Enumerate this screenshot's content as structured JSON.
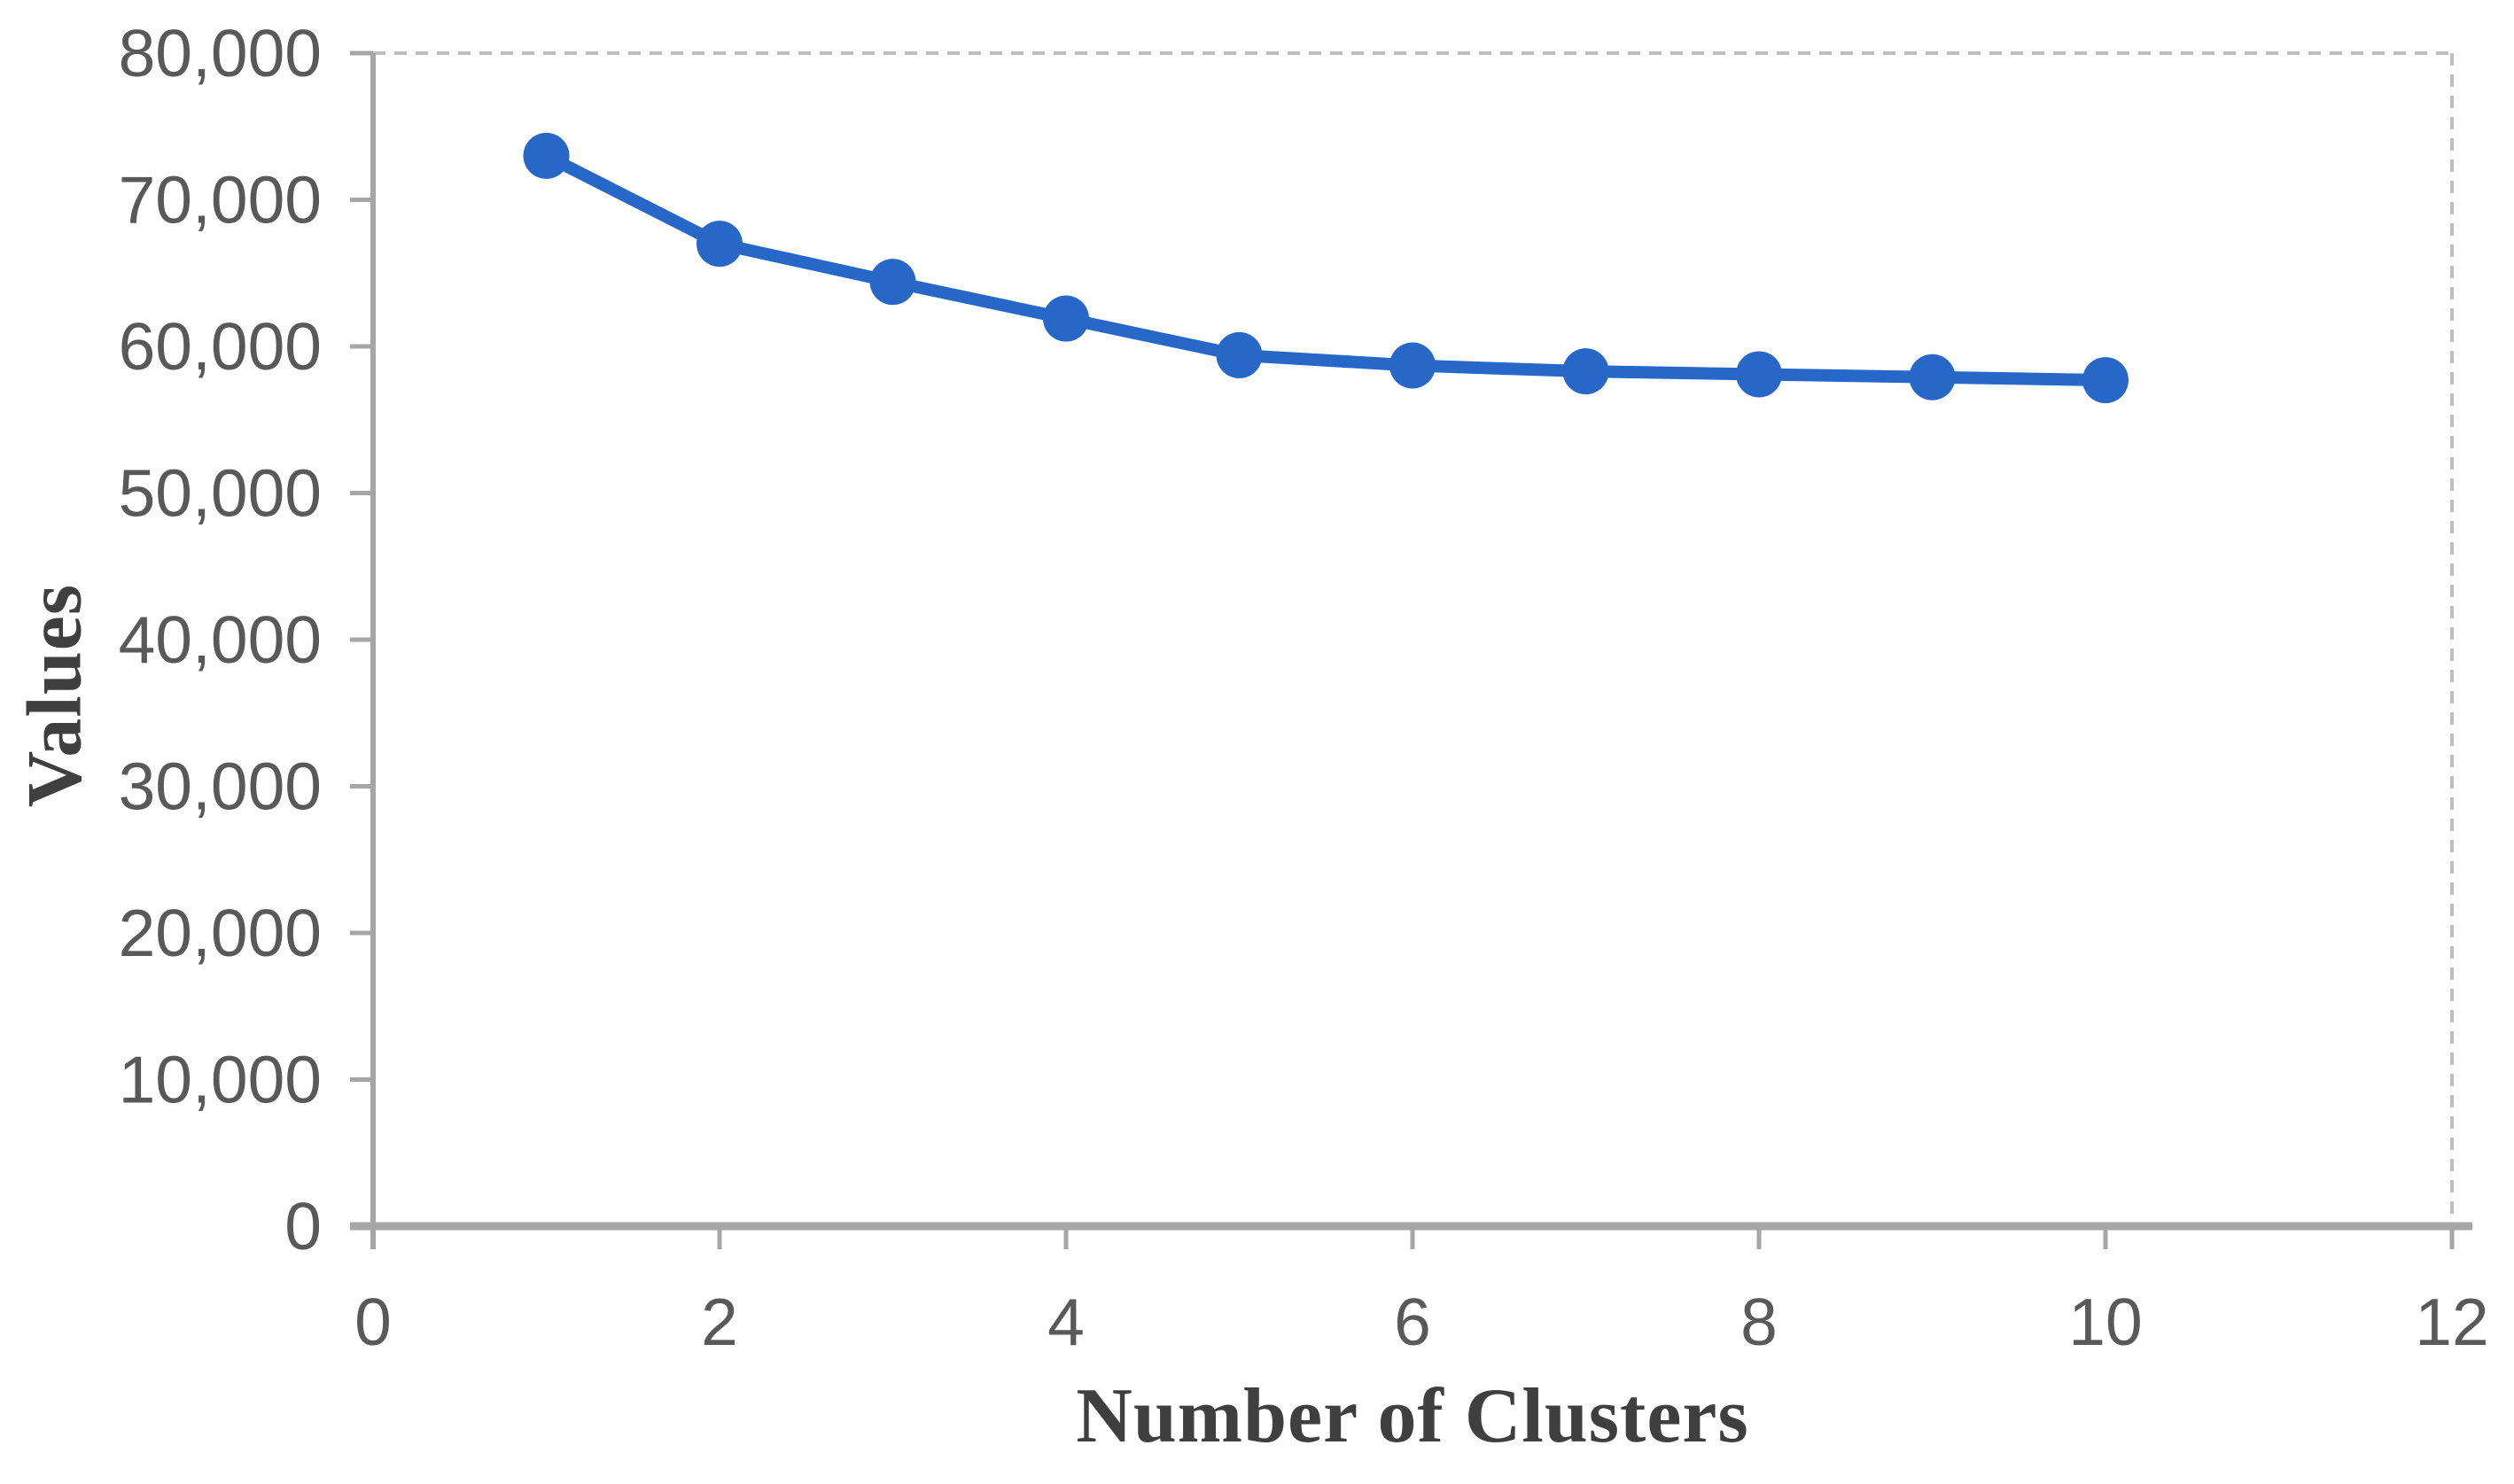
{
  "figure": {
    "background": "#ffffff"
  },
  "chart_data": {
    "type": "line",
    "title": "",
    "xlabel": "Number of Clusters",
    "ylabel": "Values",
    "x": [
      1,
      2,
      3,
      4,
      5,
      6,
      7,
      8,
      9,
      10
    ],
    "values": [
      73000,
      67000,
      64400,
      61900,
      59400,
      58700,
      58300,
      58100,
      57900,
      57700
    ],
    "xlim": [
      0,
      12
    ],
    "ylim": [
      0,
      80000
    ],
    "x_ticks": {
      "values": [
        0,
        2,
        4,
        6,
        8,
        10,
        12
      ],
      "labels": [
        "0",
        "2",
        "4",
        "6",
        "8",
        "10",
        "12"
      ]
    },
    "y_ticks": {
      "values": [
        0,
        10000,
        20000,
        30000,
        40000,
        50000,
        60000,
        70000,
        80000
      ],
      "labels": [
        "0",
        "10,000",
        "20,000",
        "30,000",
        "40,000",
        "50,000",
        "60,000",
        "70,000",
        "80,000"
      ]
    },
    "legend": "none",
    "grid": "dashed top and right plot border only",
    "line_color": "#2667c8",
    "marker": "circle",
    "axis_color": "#a6a6a6",
    "dashed_border_color": "#bfbfbf",
    "tick_label_color": "#595959",
    "axis_title_color": "#3f3f3f"
  }
}
